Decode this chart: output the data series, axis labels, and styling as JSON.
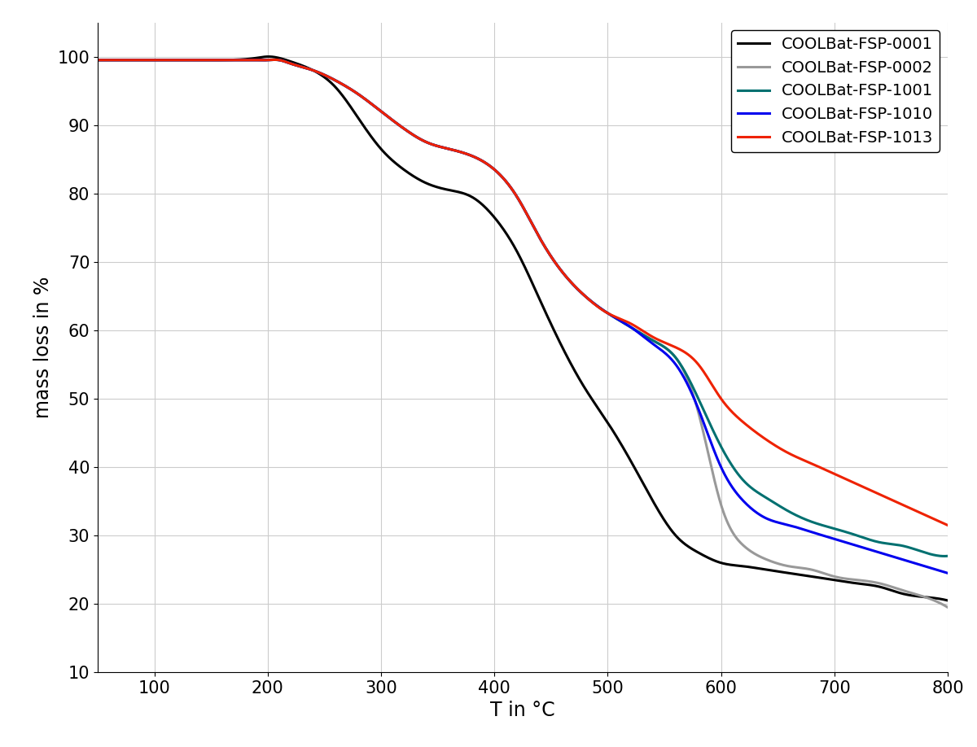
{
  "title": "",
  "xlabel": "T in °C",
  "ylabel": "mass loss in %",
  "xlim": [
    50,
    800
  ],
  "ylim": [
    10,
    105
  ],
  "xticks": [
    100,
    200,
    300,
    400,
    500,
    600,
    700,
    800
  ],
  "yticks": [
    10,
    20,
    30,
    40,
    50,
    60,
    70,
    80,
    90,
    100
  ],
  "background_color": "#ffffff",
  "grid_color": "#cccccc",
  "curves": [
    {
      "label": "COOLBat-FSP-0001",
      "color": "#000000",
      "linewidth": 2.2,
      "x": [
        50,
        80,
        100,
        130,
        160,
        190,
        200,
        210,
        220,
        240,
        260,
        280,
        300,
        320,
        340,
        360,
        380,
        400,
        420,
        440,
        460,
        480,
        500,
        520,
        540,
        560,
        580,
        600,
        620,
        640,
        660,
        680,
        700,
        720,
        740,
        760,
        780,
        800
      ],
      "y": [
        99.5,
        99.5,
        99.5,
        99.5,
        99.5,
        99.8,
        100.0,
        99.8,
        99.3,
        98.0,
        95.5,
        91.0,
        86.5,
        83.5,
        81.5,
        80.5,
        79.5,
        76.5,
        71.5,
        64.5,
        57.5,
        51.5,
        46.5,
        41.0,
        35.0,
        30.0,
        27.5,
        26.0,
        25.5,
        25.0,
        24.5,
        24.0,
        23.5,
        23.0,
        22.5,
        21.5,
        21.0,
        20.5
      ]
    },
    {
      "label": "COOLBat-FSP-0002",
      "color": "#999999",
      "linewidth": 2.2,
      "x": [
        50,
        80,
        100,
        130,
        160,
        190,
        200,
        210,
        220,
        240,
        260,
        280,
        300,
        320,
        340,
        360,
        380,
        400,
        420,
        440,
        460,
        480,
        500,
        520,
        540,
        560,
        580,
        600,
        620,
        640,
        660,
        680,
        700,
        720,
        740,
        760,
        780,
        800
      ],
      "y": [
        99.5,
        99.5,
        99.5,
        99.5,
        99.5,
        99.5,
        99.5,
        99.5,
        99.0,
        98.0,
        96.5,
        94.5,
        92.0,
        89.5,
        87.5,
        86.5,
        85.5,
        83.5,
        79.5,
        73.5,
        68.5,
        65.0,
        62.5,
        60.5,
        58.5,
        56.0,
        48.0,
        34.5,
        28.5,
        26.5,
        25.5,
        25.0,
        24.0,
        23.5,
        23.0,
        22.0,
        21.0,
        19.5
      ]
    },
    {
      "label": "COOLBat-FSP-1001",
      "color": "#007070",
      "linewidth": 2.2,
      "x": [
        50,
        80,
        100,
        130,
        160,
        190,
        200,
        210,
        220,
        240,
        260,
        280,
        300,
        320,
        340,
        360,
        380,
        400,
        420,
        440,
        460,
        480,
        500,
        520,
        540,
        560,
        580,
        600,
        620,
        640,
        660,
        680,
        700,
        720,
        740,
        760,
        780,
        800
      ],
      "y": [
        99.5,
        99.5,
        99.5,
        99.5,
        99.5,
        99.5,
        99.5,
        99.5,
        99.0,
        98.0,
        96.5,
        94.5,
        92.0,
        89.5,
        87.5,
        86.5,
        85.5,
        83.5,
        79.5,
        73.5,
        68.5,
        65.0,
        62.5,
        60.5,
        58.5,
        56.0,
        50.0,
        43.0,
        38.0,
        35.5,
        33.5,
        32.0,
        31.0,
        30.0,
        29.0,
        28.5,
        27.5,
        27.0
      ]
    },
    {
      "label": "COOLBat-FSP-1010",
      "color": "#0000ee",
      "linewidth": 2.2,
      "x": [
        50,
        80,
        100,
        130,
        160,
        190,
        200,
        210,
        220,
        240,
        260,
        280,
        300,
        320,
        340,
        360,
        380,
        400,
        420,
        440,
        460,
        480,
        500,
        520,
        540,
        560,
        580,
        600,
        620,
        640,
        660,
        680,
        700,
        720,
        740,
        760,
        780,
        800
      ],
      "y": [
        99.5,
        99.5,
        99.5,
        99.5,
        99.5,
        99.5,
        99.5,
        99.5,
        99.0,
        98.0,
        96.5,
        94.5,
        92.0,
        89.5,
        87.5,
        86.5,
        85.5,
        83.5,
        79.5,
        73.5,
        68.5,
        65.0,
        62.5,
        60.5,
        58.0,
        55.0,
        48.5,
        40.0,
        35.0,
        32.5,
        31.5,
        30.5,
        29.5,
        28.5,
        27.5,
        26.5,
        25.5,
        24.5
      ]
    },
    {
      "label": "COOLBat-FSP-1013",
      "color": "#ee2200",
      "linewidth": 2.2,
      "x": [
        50,
        80,
        100,
        130,
        160,
        190,
        200,
        210,
        220,
        240,
        260,
        280,
        300,
        320,
        340,
        360,
        380,
        400,
        420,
        440,
        460,
        480,
        500,
        520,
        540,
        560,
        580,
        600,
        620,
        640,
        660,
        680,
        700,
        720,
        740,
        760,
        780,
        800
      ],
      "y": [
        99.5,
        99.5,
        99.5,
        99.5,
        99.5,
        99.5,
        99.5,
        99.5,
        99.0,
        98.0,
        96.5,
        94.5,
        92.0,
        89.5,
        87.5,
        86.5,
        85.5,
        83.5,
        79.5,
        73.5,
        68.5,
        65.0,
        62.5,
        61.0,
        59.0,
        57.5,
        55.0,
        50.0,
        46.5,
        44.0,
        42.0,
        40.5,
        39.0,
        37.5,
        36.0,
        34.5,
        33.0,
        31.5
      ]
    }
  ],
  "legend_loc": "upper right",
  "legend_fontsize": 14,
  "axis_fontsize": 17,
  "tick_fontsize": 15
}
